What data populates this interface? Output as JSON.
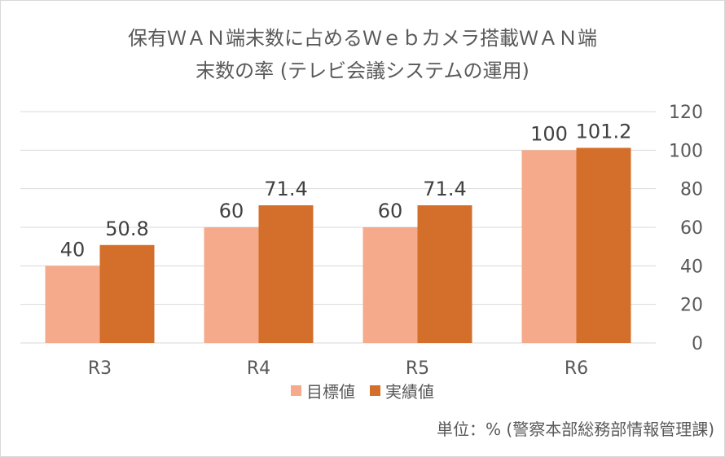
{
  "chart_data": {
    "type": "bar",
    "title_line1": "保有ＷＡＮ端末数に占めるＷｅｂカメラ搭載ＷＡＮ端",
    "title_line2": "末数の率 (テレビ会議システムの運用)",
    "categories": [
      "R3",
      "R4",
      "R5",
      "R6"
    ],
    "series": [
      {
        "name": "目標値",
        "values": [
          40,
          60,
          60,
          100
        ],
        "labels": [
          "40",
          "60",
          "60",
          "100"
        ],
        "color": "#f4aa8b"
      },
      {
        "name": "実績値",
        "values": [
          50.8,
          71.4,
          71.4,
          101.2
        ],
        "labels": [
          "50.8",
          "71.4",
          "71.4",
          "101.2"
        ],
        "color": "#d46e2b"
      }
    ],
    "ylim": [
      0,
      120
    ],
    "yticks": [
      "0",
      "20",
      "40",
      "60",
      "80",
      "100",
      "120"
    ],
    "y_axis_side": "right",
    "grid": true,
    "legend_position": "bottom",
    "gridline_color": "#d9d9d9"
  },
  "footer": {
    "unit_note": "単位：% (警察本部総務部情報管理課)"
  }
}
